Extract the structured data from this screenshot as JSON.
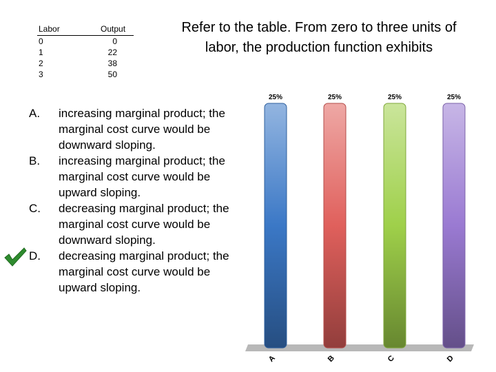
{
  "table": {
    "headers": [
      "Labor",
      "Output"
    ],
    "rows": [
      [
        "0",
        "0"
      ],
      [
        "1",
        "22"
      ],
      [
        "2",
        "38"
      ],
      [
        "3",
        "50"
      ]
    ]
  },
  "question": "Refer to the table.  From zero to three units of labor, the production function exhibits",
  "options": [
    {
      "letter": "A.",
      "text": "increasing marginal product; the marginal cost curve would be downward sloping.",
      "correct": false
    },
    {
      "letter": "B.",
      "text": "increasing marginal product; the marginal cost curve would be upward sloping.",
      "correct": false
    },
    {
      "letter": "C.",
      "text": "decreasing marginal product; the marginal cost curve would be downward sloping.",
      "correct": false
    },
    {
      "letter": "D.",
      "text": "decreasing marginal product; the marginal cost curve would be upward sloping.",
      "correct": true
    }
  ],
  "chart_data": {
    "type": "bar",
    "categories": [
      "A",
      "B",
      "C",
      "D"
    ],
    "values": [
      25,
      25,
      25,
      25
    ],
    "value_labels": [
      "25%",
      "25%",
      "25%",
      "25%"
    ],
    "ylim": [
      0,
      25
    ],
    "colors": [
      "#3b78c6",
      "#e0605c",
      "#9fd04a",
      "#9a7ad2"
    ]
  }
}
